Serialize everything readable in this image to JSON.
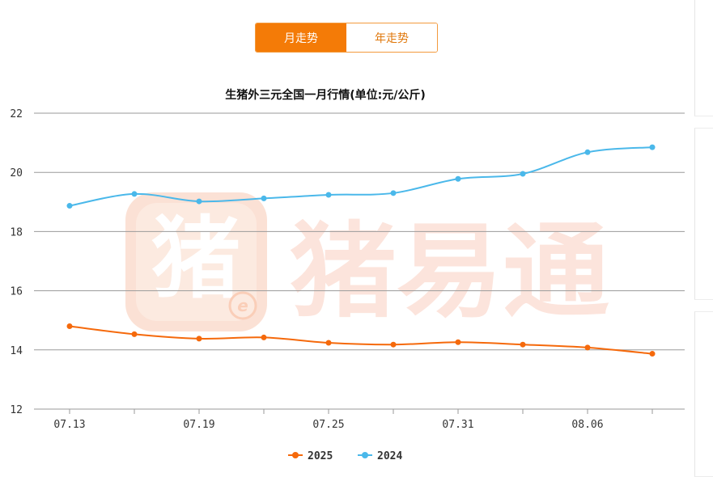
{
  "tabs": [
    {
      "label": "月走势",
      "active": true
    },
    {
      "label": "年走势",
      "active": false
    }
  ],
  "watermark": {
    "text": "猪易通",
    "logo_char": "猪",
    "logo_mark": "e"
  },
  "colors": {
    "accent": "#f47b07",
    "series_2025": "#f5690b",
    "series_2024": "#4ab8ea",
    "watermark": "#fcd9cb"
  },
  "chart_data": {
    "type": "line",
    "title": "生猪外三元全国一月行情(单位:元/公斤)",
    "xlabel": "",
    "ylabel": "",
    "x": [
      "07.13",
      "07.16",
      "07.19",
      "07.22",
      "07.25",
      "07.28",
      "07.31",
      "08.03",
      "08.06",
      "08.09"
    ],
    "x_tick_labels": [
      "07.13",
      "07.19",
      "07.25",
      "07.31",
      "08.06"
    ],
    "ylim": [
      12,
      22
    ],
    "y_ticks": [
      12,
      14,
      16,
      18,
      20,
      22
    ],
    "grid": true,
    "legend_position": "bottom",
    "series": [
      {
        "name": "2025",
        "color": "#f5690b",
        "values": [
          14.8,
          14.53,
          14.38,
          14.42,
          14.24,
          14.18,
          14.26,
          14.18,
          14.08,
          13.87
        ]
      },
      {
        "name": "2024",
        "color": "#4ab8ea",
        "values": [
          18.87,
          19.27,
          19.02,
          19.12,
          19.24,
          19.3,
          19.78,
          19.95,
          20.68,
          20.85
        ]
      }
    ]
  }
}
